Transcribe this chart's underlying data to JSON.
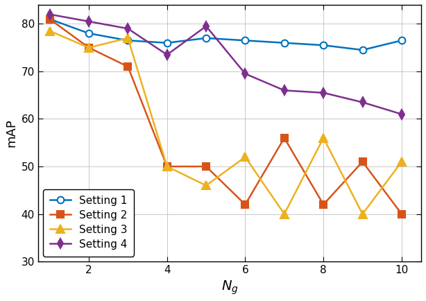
{
  "x": [
    1,
    2,
    3,
    4,
    5,
    6,
    7,
    8,
    9,
    10
  ],
  "setting1": [
    81,
    78,
    76.5,
    76,
    77,
    76.5,
    76,
    75.5,
    74.5,
    76.5
  ],
  "setting2": [
    81,
    75,
    71,
    50,
    50,
    42,
    56,
    42,
    51,
    40
  ],
  "setting3": [
    78.5,
    75,
    77,
    50,
    46,
    52,
    40,
    56,
    40,
    51
  ],
  "setting4": [
    82,
    80.5,
    79,
    73.5,
    79.5,
    69.5,
    66,
    65.5,
    63.5,
    61
  ],
  "colors": {
    "setting1": "#0072BD",
    "setting2": "#D95319",
    "setting3": "#EDB120",
    "setting4": "#7E2F8E"
  },
  "markers": {
    "setting1": "o",
    "setting2": "s",
    "setting3": "^",
    "setting4": "d"
  },
  "labels": [
    "Setting 1",
    "Setting 2",
    "Setting 3",
    "Setting 4"
  ],
  "xlabel": "$N_g$",
  "ylabel": "mAP",
  "ylim": [
    30,
    84
  ],
  "xlim": [
    0.7,
    10.5
  ],
  "yticks": [
    30,
    40,
    50,
    60,
    70,
    80
  ],
  "xticks": [
    2,
    4,
    6,
    8,
    10
  ],
  "legend_loc": "lower left"
}
